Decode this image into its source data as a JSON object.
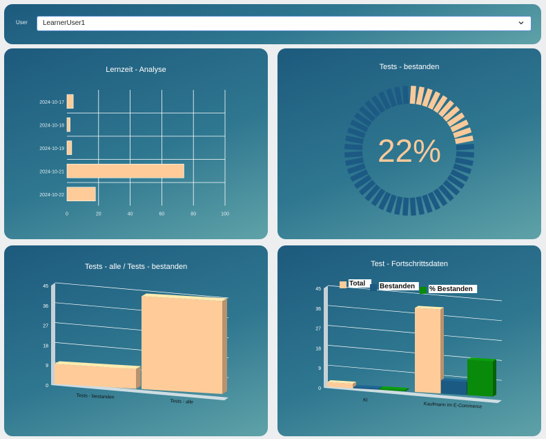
{
  "user": {
    "label": "User",
    "selected": "LearnerUser1"
  },
  "panels": {
    "lernzeit": {
      "title": "Lernzeit - Analyse",
      "chart_data": {
        "type": "bar",
        "orientation": "horizontal",
        "categories": [
          "2024-10-17",
          "2024-10-18",
          "2024-10-19",
          "2024-10-21",
          "2024-10-22"
        ],
        "values": [
          4,
          2,
          3,
          74,
          18
        ],
        "xticks": [
          "0",
          "20",
          "40",
          "60",
          "80",
          "100"
        ],
        "xlim": [
          0,
          100
        ],
        "grid": true,
        "color": "#ffcc99"
      }
    },
    "bestanden": {
      "title": "Tests - bestanden",
      "chart_data": {
        "type": "gauge",
        "value": 22,
        "label": "22%",
        "segments": 48,
        "active_color": "#f9c99a",
        "inactive_color": "#1c5a84"
      }
    },
    "alle": {
      "title": "Tests - alle / Tests - bestanden",
      "chart_data": {
        "type": "bar",
        "style": "3d",
        "categories": [
          "Tests - bestanden",
          "Tests - alle"
        ],
        "values": [
          9,
          42
        ],
        "yticks": [
          "0",
          "9",
          "18",
          "27",
          "36",
          "45"
        ],
        "ylim": [
          0,
          45
        ],
        "color": "#ffcc99"
      }
    },
    "fortschritt": {
      "title": "Test - Fortschrittsdaten",
      "chart_data": {
        "type": "bar",
        "style": "3d",
        "categories": [
          "KI",
          "Kaufmann im E-Commerce"
        ],
        "series": [
          {
            "name": "Total",
            "values": [
              2,
              38
            ],
            "color": "#ffcc99"
          },
          {
            "name": "Bestanden",
            "values": [
              0,
              6
            ],
            "color": "#1b5a82"
          },
          {
            "name": "% Bestanden",
            "values": [
              0,
              16
            ],
            "color": "#0a8a0a"
          }
        ],
        "yticks": [
          "0",
          "9",
          "18",
          "27",
          "36",
          "45"
        ],
        "ylim": [
          0,
          45
        ],
        "legend": "top"
      }
    }
  }
}
